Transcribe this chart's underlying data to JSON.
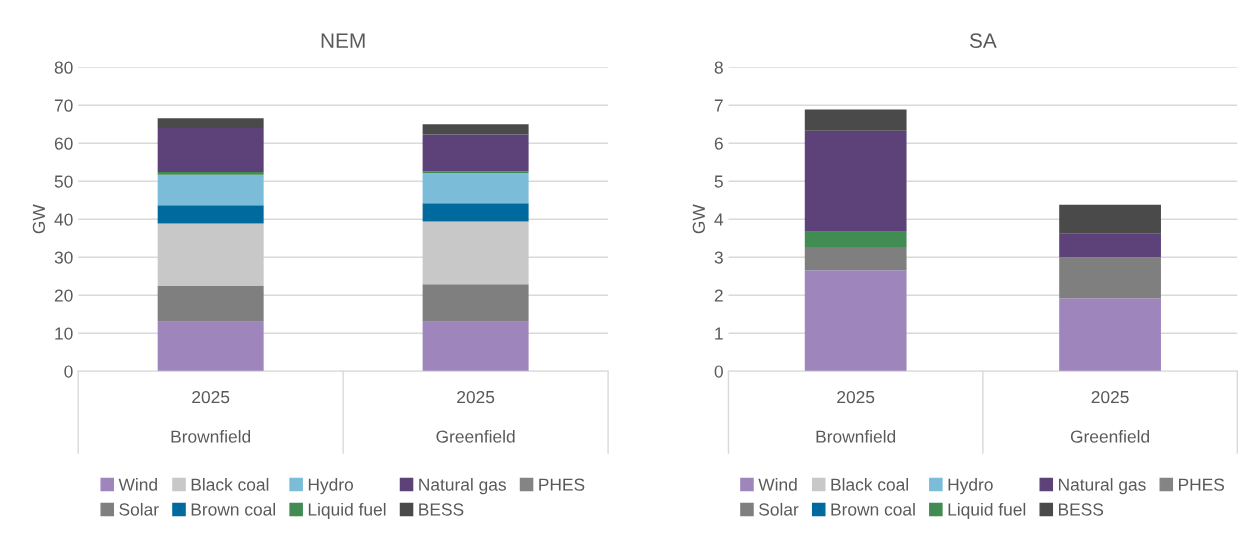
{
  "chart_data": [
    {
      "type": "bar",
      "title": "NEM",
      "ylabel": "GW",
      "stacked": true,
      "categories": [
        "2025\nBrownfield",
        "2025\nGreenfield"
      ],
      "ylim": [
        0,
        80
      ],
      "yticks": [
        0,
        10,
        20,
        30,
        40,
        50,
        60,
        70,
        80
      ],
      "grid": "y",
      "legend": "bottom",
      "series": [
        {
          "name": "Wind",
          "color": "#9e86bd",
          "values": [
            13,
            13
          ]
        },
        {
          "name": "Solar",
          "color": "#7f7f7f",
          "values": [
            9.4,
            9.9
          ]
        },
        {
          "name": "Black coal",
          "color": "#c8c8c8",
          "values": [
            16.5,
            16.5
          ]
        },
        {
          "name": "Brown coal",
          "color": "#006a9e",
          "values": [
            4.8,
            4.8
          ]
        },
        {
          "name": "Hydro",
          "color": "#7bbcd8",
          "values": [
            8,
            8
          ]
        },
        {
          "name": "Liquid fuel",
          "color": "#418c52",
          "values": [
            0.7,
            0.4
          ]
        },
        {
          "name": "Natural gas",
          "color": "#5c4279",
          "values": [
            11.6,
            9.7
          ]
        },
        {
          "name": "BESS",
          "color": "#4a4a4a",
          "values": [
            2.6,
            2.7
          ]
        },
        {
          "name": "PHES",
          "color": "#848484",
          "values": [
            0,
            0
          ]
        }
      ]
    },
    {
      "type": "bar",
      "title": "SA",
      "ylabel": "GW",
      "stacked": true,
      "categories": [
        "2025\nBrownfield",
        "2025\nGreenfield"
      ],
      "ylim": [
        0,
        8
      ],
      "yticks": [
        0,
        1,
        2,
        3,
        4,
        5,
        6,
        7,
        8
      ],
      "grid": "y",
      "legend": "bottom",
      "series": [
        {
          "name": "Wind",
          "color": "#9e86bd",
          "values": [
            2.66,
            1.92
          ]
        },
        {
          "name": "Solar",
          "color": "#7f7f7f",
          "values": [
            0.61,
            1.08
          ]
        },
        {
          "name": "Black coal",
          "color": "#c8c8c8",
          "values": [
            0,
            0
          ]
        },
        {
          "name": "Brown coal",
          "color": "#006a9e",
          "values": [
            0,
            0
          ]
        },
        {
          "name": "Hydro",
          "color": "#7bbcd8",
          "values": [
            0,
            0
          ]
        },
        {
          "name": "Liquid fuel",
          "color": "#418c52",
          "values": [
            0.4,
            0
          ]
        },
        {
          "name": "Natural gas",
          "color": "#5c4279",
          "values": [
            2.66,
            0.62
          ]
        },
        {
          "name": "BESS",
          "color": "#4a4a4a",
          "values": [
            0.56,
            0.76
          ]
        },
        {
          "name": "PHES",
          "color": "#848484",
          "values": [
            0,
            0
          ]
        }
      ]
    }
  ]
}
